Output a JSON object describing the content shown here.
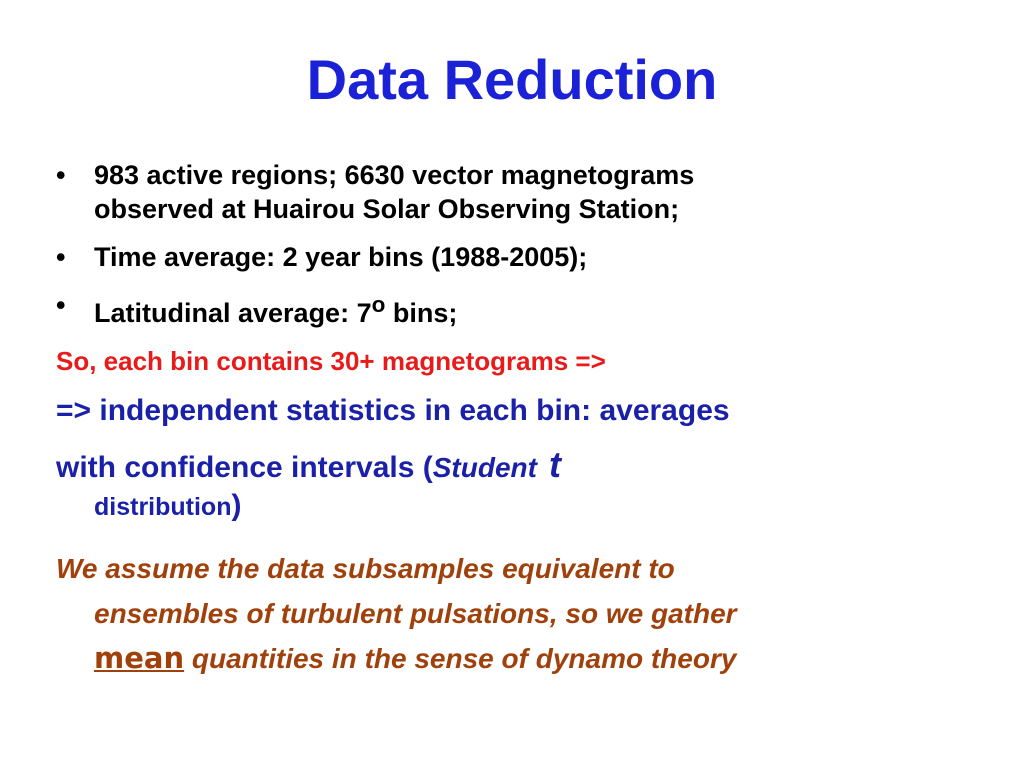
{
  "title": "Data Reduction",
  "bullets": [
    {
      "line1": "983 active regions; 6630 vector magnetograms",
      "line2": "observed at Huairou Solar Observing Station;"
    },
    {
      "line1": "Time average: 2 year bins (1988-2005);"
    },
    {
      "text": "Latitudinal average: 7",
      "sup": "o",
      "after": " bins;"
    }
  ],
  "red_line": "So, each bin contains 30+ magnetograms =>",
  "blue": {
    "line1": "=> independent statistics in each bin: averages",
    "line2_a": "with confidence intervals (",
    "student": "Student",
    "t": "t",
    "line3": "distribution",
    "close_paren": ")"
  },
  "brown": {
    "line1": "We assume the data subsamples equivalent to",
    "line2": "ensembles of turbulent pulsations, so we gather",
    "mean": "mean",
    "line3_rest": " quantities in the sense of dynamo theory"
  },
  "colors": {
    "title": "#1a21d6",
    "red": "#e81b1b",
    "blue": "#1a21a8",
    "brown": "#a0410c"
  }
}
